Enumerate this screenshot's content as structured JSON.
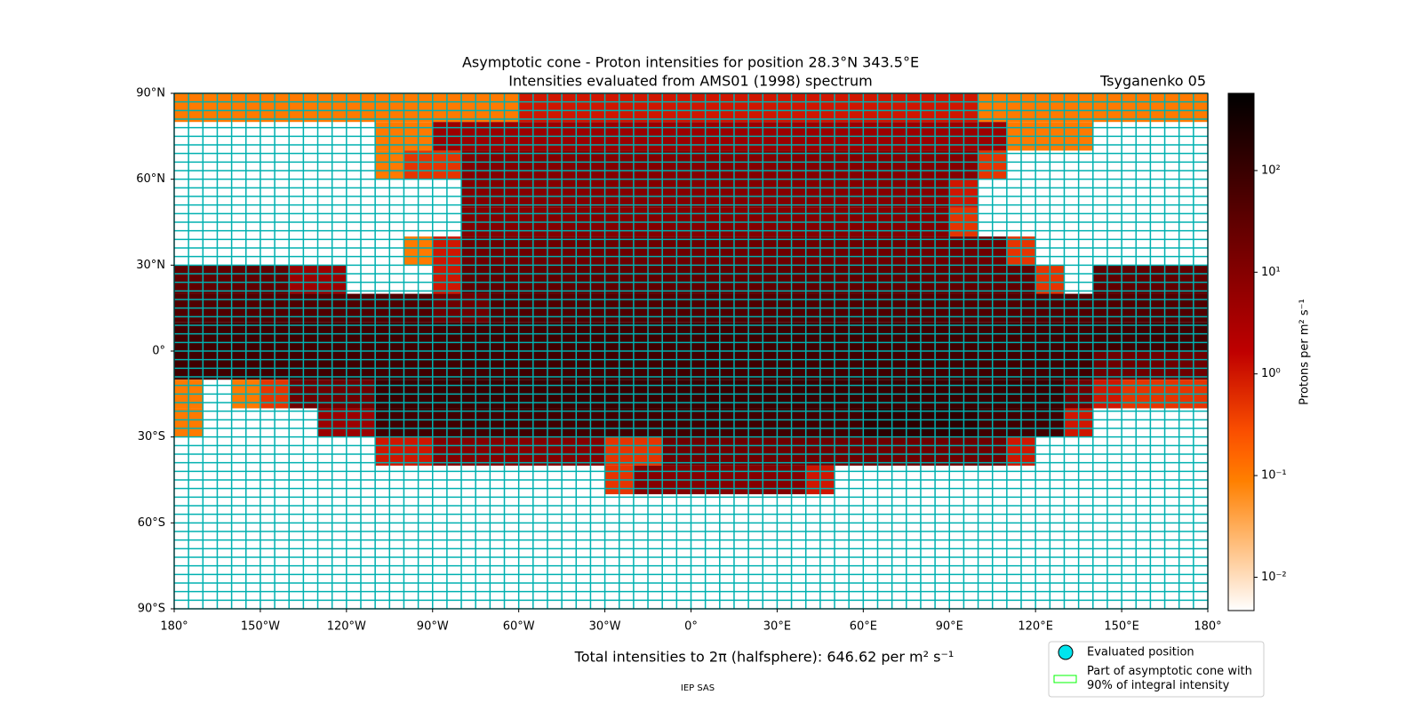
{
  "chart_data": {
    "type": "heatmap",
    "title": "Asymptotic cone - Proton intensities for position 28.3°N 343.5°E",
    "subtitle": "Intensities evaluated from AMS01 (1998) spectrum",
    "model": "Tsyganenko 05",
    "footer": "Total intensities to 2π (halfsphere): 646.62 per m² s⁻¹",
    "credit": "IEP SAS",
    "colorbar_label": "Protons per m² s⁻¹",
    "log_scale": true,
    "clim": [
      0.0047,
      575
    ],
    "cticks": [
      {
        "value": 0.01,
        "label": "10⁻²"
      },
      {
        "value": 0.1,
        "label": "10⁻¹"
      },
      {
        "value": 1,
        "label": "10⁰"
      },
      {
        "value": 10,
        "label": "10¹"
      },
      {
        "value": 100,
        "label": "10²"
      }
    ],
    "xlim": [
      -180,
      180
    ],
    "ylim": [
      -90,
      90
    ],
    "xticks": [
      {
        "value": -180,
        "label": "180°"
      },
      {
        "value": -150,
        "label": "150°W"
      },
      {
        "value": -120,
        "label": "120°W"
      },
      {
        "value": -90,
        "label": "90°W"
      },
      {
        "value": -60,
        "label": "60°W"
      },
      {
        "value": -30,
        "label": "30°W"
      },
      {
        "value": 0,
        "label": "0°"
      },
      {
        "value": 30,
        "label": "30°E"
      },
      {
        "value": 60,
        "label": "60°E"
      },
      {
        "value": 90,
        "label": "90°E"
      },
      {
        "value": 120,
        "label": "120°E"
      },
      {
        "value": 150,
        "label": "150°E"
      },
      {
        "value": 180,
        "label": "180°"
      }
    ],
    "yticks": [
      {
        "value": 90,
        "label": "90°N"
      },
      {
        "value": 60,
        "label": "60°N"
      },
      {
        "value": 30,
        "label": "30°N"
      },
      {
        "value": 0,
        "label": "0°"
      },
      {
        "value": -30,
        "label": "30°S"
      },
      {
        "value": -60,
        "label": "60°S"
      },
      {
        "value": -90,
        "label": "90°S"
      }
    ],
    "legend": [
      "Evaluated position",
      "Part of asymptotic cone with\n90% of integral intensity"
    ],
    "lon": [
      -175,
      -165,
      -155,
      -145,
      -135,
      -125,
      -115,
      -105,
      -95,
      -85,
      -75,
      -65,
      -55,
      -45,
      -35,
      -25,
      -15,
      -5,
      5,
      15,
      25,
      35,
      45,
      55,
      65,
      75,
      85,
      95,
      105,
      115,
      125,
      135,
      145,
      155,
      165,
      175
    ],
    "lat": [
      85,
      75,
      65,
      55,
      45,
      35,
      25,
      15,
      5,
      -5,
      -15,
      -25,
      -35,
      -45,
      -55,
      -65,
      -75,
      -85
    ],
    "values": [
      [
        0.1,
        0.1,
        0.1,
        0.1,
        0.1,
        0.1,
        0.1,
        0.1,
        0.1,
        0.1,
        0.1,
        0.1,
        1,
        1,
        1,
        1,
        1,
        1,
        1,
        1,
        1,
        1,
        1,
        1,
        1,
        1,
        1,
        1,
        0.1,
        0.1,
        0.1,
        0.1,
        0.1,
        0.1,
        0.1,
        0.1
      ],
      [
        null,
        null,
        null,
        null,
        null,
        null,
        null,
        0.1,
        0.1,
        5,
        5,
        5,
        5,
        5,
        5,
        5,
        5,
        5,
        5,
        5,
        5,
        5,
        5,
        5,
        5,
        5,
        5,
        5,
        5,
        0.1,
        0.1,
        0.1,
        null,
        null,
        null,
        null
      ],
      [
        null,
        null,
        null,
        null,
        null,
        null,
        null,
        0.1,
        0.5,
        0.5,
        10,
        10,
        10,
        10,
        10,
        10,
        10,
        10,
        10,
        10,
        10,
        10,
        10,
        10,
        10,
        10,
        10,
        10,
        0.5,
        null,
        null,
        null,
        null,
        null,
        null,
        null
      ],
      [
        null,
        null,
        null,
        null,
        null,
        null,
        null,
        null,
        null,
        null,
        10,
        10,
        10,
        10,
        10,
        10,
        10,
        10,
        10,
        10,
        10,
        10,
        10,
        10,
        10,
        10,
        10,
        1,
        null,
        null,
        null,
        null,
        null,
        null,
        null,
        null
      ],
      [
        null,
        null,
        null,
        null,
        null,
        null,
        null,
        null,
        null,
        null,
        10,
        10,
        10,
        10,
        10,
        10,
        10,
        10,
        10,
        10,
        10,
        10,
        10,
        10,
        10,
        10,
        10,
        0.5,
        null,
        null,
        null,
        null,
        null,
        null,
        null,
        null
      ],
      [
        null,
        null,
        null,
        null,
        null,
        null,
        null,
        null,
        0.1,
        1,
        20,
        20,
        20,
        20,
        20,
        20,
        20,
        20,
        20,
        20,
        20,
        20,
        20,
        20,
        20,
        20,
        20,
        20,
        20,
        0.5,
        null,
        null,
        null,
        null,
        null,
        null
      ],
      [
        30,
        30,
        30,
        30,
        5,
        5,
        null,
        null,
        null,
        1,
        30,
        30,
        30,
        30,
        30,
        30,
        30,
        30,
        30,
        30,
        30,
        30,
        30,
        30,
        30,
        30,
        30,
        30,
        30,
        30,
        0.5,
        null,
        30,
        30,
        30,
        30
      ],
      [
        50,
        50,
        50,
        50,
        50,
        50,
        50,
        50,
        50,
        20,
        20,
        50,
        50,
        50,
        50,
        50,
        50,
        50,
        50,
        50,
        50,
        50,
        50,
        50,
        50,
        50,
        50,
        50,
        50,
        50,
        50,
        50,
        50,
        50,
        50,
        50
      ],
      [
        80,
        80,
        80,
        80,
        80,
        80,
        80,
        80,
        80,
        80,
        80,
        80,
        80,
        80,
        80,
        80,
        80,
        80,
        80,
        80,
        80,
        80,
        80,
        80,
        80,
        80,
        80,
        80,
        80,
        80,
        80,
        80,
        80,
        80,
        80,
        80
      ],
      [
        80,
        80,
        80,
        80,
        80,
        80,
        80,
        80,
        80,
        80,
        80,
        80,
        80,
        80,
        80,
        80,
        80,
        80,
        80,
        80,
        80,
        80,
        80,
        80,
        80,
        80,
        80,
        80,
        80,
        80,
        80,
        80,
        20,
        20,
        20,
        20
      ],
      [
        0.1,
        null,
        0.1,
        0.5,
        20,
        20,
        20,
        100,
        100,
        100,
        100,
        100,
        100,
        100,
        100,
        100,
        100,
        100,
        100,
        100,
        100,
        100,
        100,
        100,
        100,
        100,
        100,
        100,
        100,
        100,
        100,
        20,
        1,
        0.5,
        0.5,
        0.5
      ],
      [
        0.1,
        null,
        null,
        null,
        null,
        5,
        5,
        80,
        80,
        80,
        80,
        80,
        80,
        80,
        80,
        80,
        80,
        80,
        80,
        80,
        80,
        80,
        80,
        80,
        150,
        150,
        150,
        150,
        80,
        80,
        80,
        1,
        null,
        null,
        null,
        null
      ],
      [
        null,
        null,
        null,
        null,
        null,
        null,
        null,
        1,
        1,
        10,
        10,
        10,
        10,
        10,
        10,
        0.5,
        0.5,
        20,
        20,
        20,
        20,
        20,
        20,
        20,
        20,
        20,
        20,
        20,
        20,
        1,
        null,
        null,
        null,
        null,
        null,
        null
      ],
      [
        null,
        null,
        null,
        null,
        null,
        null,
        null,
        null,
        null,
        null,
        null,
        null,
        null,
        null,
        null,
        0.5,
        10,
        10,
        10,
        10,
        10,
        10,
        1,
        null,
        null,
        null,
        null,
        null,
        null,
        null,
        null,
        null,
        null,
        null,
        null,
        null
      ],
      [
        null,
        null,
        null,
        null,
        null,
        null,
        null,
        null,
        null,
        null,
        null,
        null,
        null,
        null,
        null,
        null,
        null,
        null,
        null,
        null,
        null,
        null,
        null,
        null,
        null,
        null,
        null,
        null,
        null,
        null,
        null,
        null,
        null,
        null,
        null,
        null
      ],
      [
        null,
        null,
        null,
        null,
        null,
        null,
        null,
        null,
        null,
        null,
        null,
        null,
        null,
        null,
        null,
        null,
        null,
        null,
        null,
        null,
        null,
        null,
        null,
        null,
        null,
        null,
        null,
        null,
        null,
        null,
        null,
        null,
        null,
        null,
        null,
        null
      ],
      [
        null,
        null,
        null,
        null,
        null,
        null,
        null,
        null,
        null,
        null,
        null,
        null,
        null,
        null,
        null,
        null,
        null,
        null,
        null,
        null,
        null,
        null,
        null,
        null,
        null,
        null,
        null,
        null,
        null,
        null,
        null,
        null,
        null,
        null,
        null,
        null
      ],
      [
        null,
        null,
        null,
        null,
        null,
        null,
        null,
        null,
        null,
        null,
        null,
        null,
        null,
        null,
        null,
        null,
        null,
        null,
        null,
        null,
        null,
        null,
        null,
        null,
        null,
        null,
        null,
        null,
        null,
        null,
        null,
        null,
        null,
        null,
        null,
        null
      ]
    ]
  }
}
